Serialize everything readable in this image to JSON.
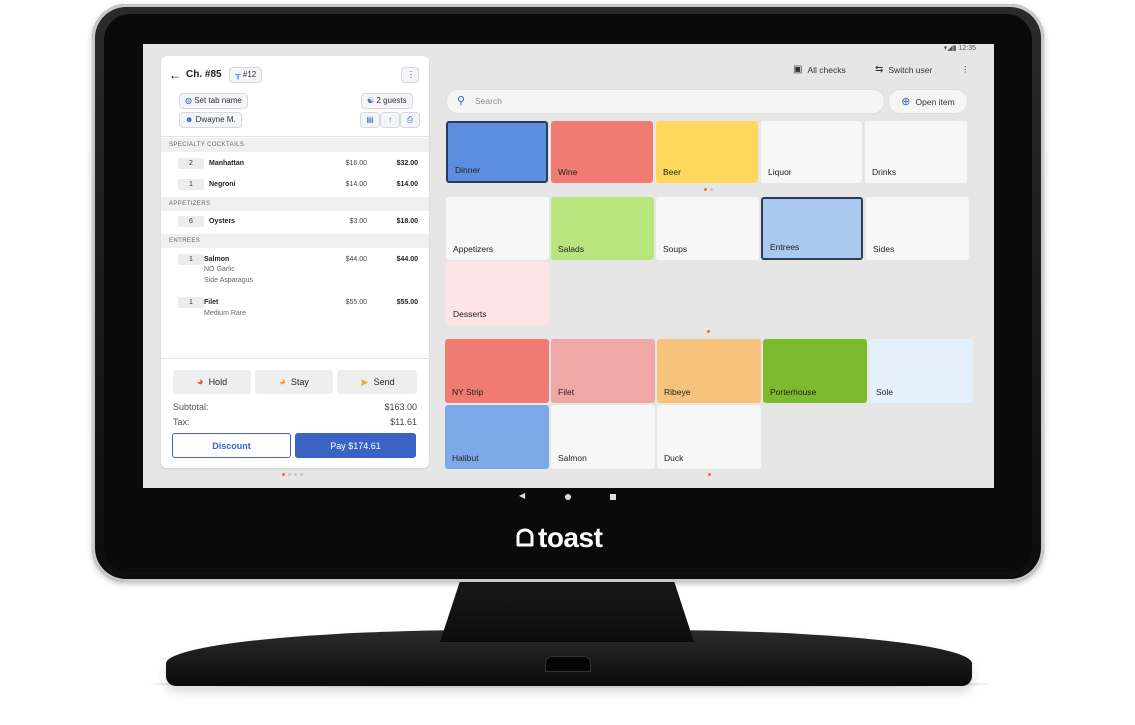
{
  "status_bar": {
    "time": "12:35"
  },
  "check": {
    "title": "Ch. #85",
    "table": "#12",
    "tab_name": "Set tab name",
    "guests": "2 guests",
    "server": "Dwayne M."
  },
  "order": {
    "sections": [
      {
        "name": "SPECIALTY COCKTAILS",
        "items": [
          {
            "qty": "2",
            "name": "Manhattan",
            "price": "$16.00",
            "total": "$32.00",
            "mods": []
          },
          {
            "qty": "1",
            "name": "Negroni",
            "price": "$14.00",
            "total": "$14.00",
            "mods": []
          }
        ]
      },
      {
        "name": "APPETIZERS",
        "items": [
          {
            "qty": "6",
            "name": "Oysters",
            "price": "$3.00",
            "total": "$18.00",
            "mods": []
          }
        ]
      },
      {
        "name": "ENTREES",
        "items": [
          {
            "qty": "1",
            "name": "Salmon",
            "price": "$44.00",
            "total": "$44.00",
            "mods": [
              "NO Garlic",
              "Side Asparagus"
            ]
          },
          {
            "qty": "1",
            "name": "Filet",
            "price": "$55.00",
            "total": "$55.00",
            "mods": [
              "Medium Rare"
            ]
          }
        ]
      }
    ]
  },
  "actions": {
    "hold": "Hold",
    "stay": "Stay",
    "send": "Send"
  },
  "summary": {
    "subtotal_label": "Subtotal:",
    "subtotal": "$163.00",
    "tax_label": "Tax:",
    "tax": "$11.61"
  },
  "payment": {
    "discount": "Discount",
    "pay": "Pay $174.61"
  },
  "top": {
    "all_checks": "All checks",
    "switch_user": "Switch user"
  },
  "search": {
    "placeholder": "Search"
  },
  "open_item": "Open item",
  "menu_groups": [
    {
      "label": "Dinner",
      "color": "#5b8ede",
      "selected": true
    },
    {
      "label": "Wine",
      "color": "#f07b72",
      "selected": false
    },
    {
      "label": "Beer",
      "color": "#fdd85d",
      "selected": false
    },
    {
      "label": "Liquor",
      "color": "#f7f7f7",
      "selected": false
    },
    {
      "label": "Drinks",
      "color": "#f7f7f7",
      "selected": false
    }
  ],
  "categories": [
    {
      "label": "Appetizers",
      "color": "#f7f7f7",
      "selected": false
    },
    {
      "label": "Salads",
      "color": "#b8e57e",
      "selected": false
    },
    {
      "label": "Soups",
      "color": "#f7f7f7",
      "selected": false
    },
    {
      "label": "Entrees",
      "color": "#a9c9ee",
      "selected": true
    },
    {
      "label": "Sides",
      "color": "#f7f7f7",
      "selected": false
    },
    {
      "label": "Desserts",
      "color": "#fde4e6",
      "selected": false
    }
  ],
  "items": [
    {
      "label": "NY Strip",
      "color": "#f07b72"
    },
    {
      "label": "Filet",
      "color": "#f0a8a6"
    },
    {
      "label": "Ribeye",
      "color": "#f7c27c"
    },
    {
      "label": "Porterhouse",
      "color": "#7dbb2e"
    },
    {
      "label": "Sole",
      "color": "#e4f0fb"
    },
    {
      "label": "Halibut",
      "color": "#7ea9e8"
    },
    {
      "label": "Salmon",
      "color": "#f7f7f7"
    },
    {
      "label": "Duck",
      "color": "#f7f7f7"
    }
  ],
  "colors": {
    "accent": "#3b63c6",
    "alert_dot": "#f26b3a"
  },
  "brand": "toast"
}
